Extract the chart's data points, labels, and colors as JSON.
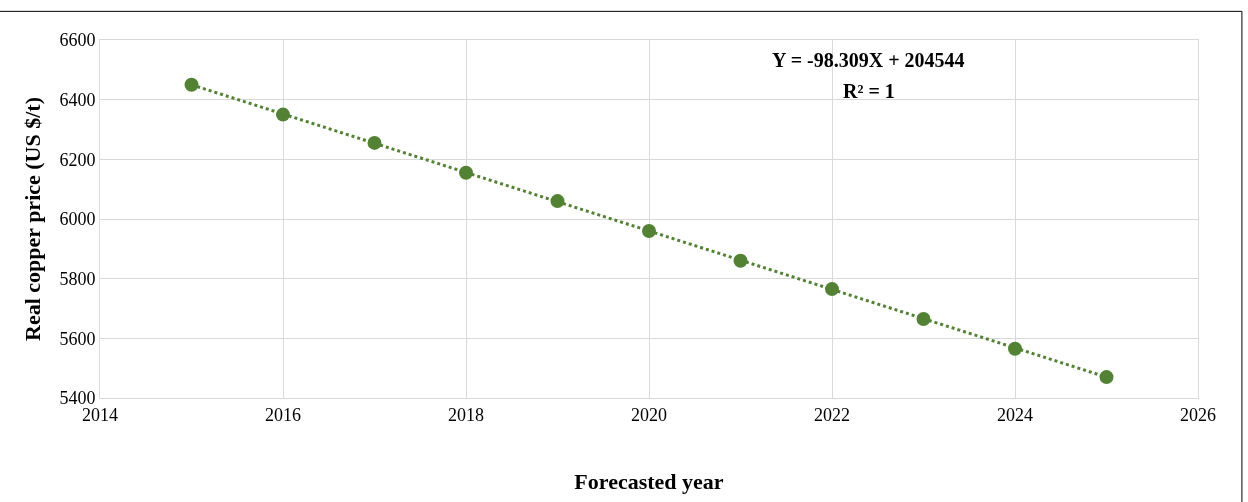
{
  "chart_data": {
    "type": "scatter",
    "xlabel": "Forecasted year",
    "ylabel": "Real copper price (US $/t)",
    "annotations": [
      "Y = -98.309X + 204544",
      "R² = 1"
    ],
    "series": [
      {
        "color": "#548235",
        "marker": "circle",
        "x": [
          2015,
          2016,
          2017,
          2018,
          2019,
          2020,
          2021,
          2022,
          2023,
          2024,
          2025
        ],
        "values": [
          6450,
          6350,
          6255,
          6155,
          6060,
          5960,
          5860,
          5765,
          5665,
          5565,
          5470
        ]
      },
      {
        "type": "line",
        "color": "#548235",
        "line_style": "dotted",
        "marker": "none",
        "x": [
          2015,
          2025
        ],
        "values": [
          6450,
          5470
        ]
      }
    ],
    "xlim": [
      2014,
      2026
    ],
    "xticks": [
      2014,
      2016,
      2018,
      2020,
      2022,
      2024,
      2026
    ],
    "ylim": [
      5400,
      6600
    ],
    "yticks": [
      5400,
      5600,
      5800,
      6000,
      6200,
      6400,
      6600
    ],
    "grid": true
  }
}
